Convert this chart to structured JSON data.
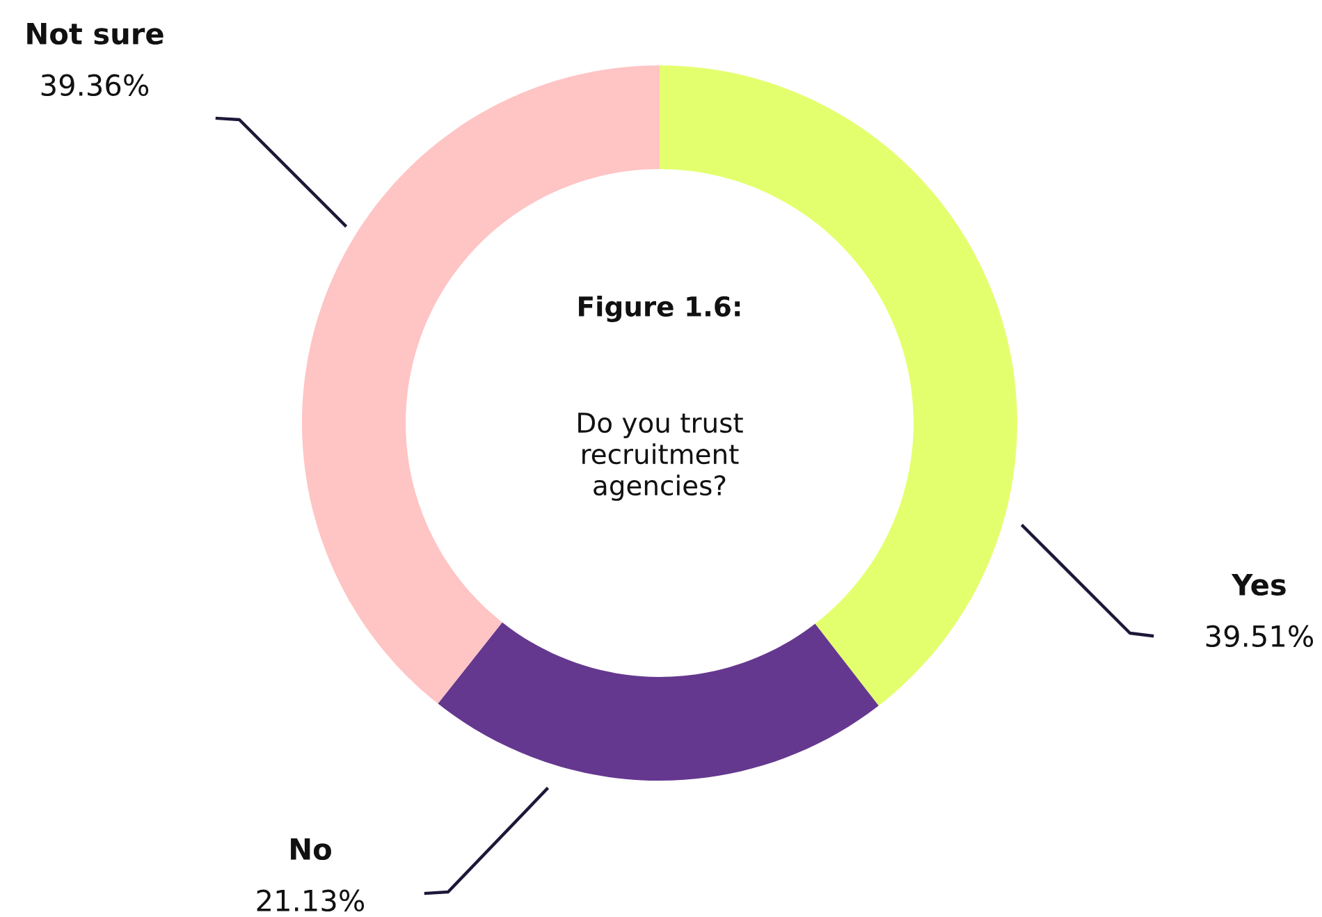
{
  "chart_data": {
    "type": "donut",
    "title": "Figure 1.6:",
    "subtitle": "Do you trust\nrecruitment\nagencies?",
    "categories": [
      "Yes",
      "No",
      "Not sure"
    ],
    "values": [
      39.51,
      21.13,
      39.36
    ],
    "value_labels": [
      "39.51%",
      "21.13%",
      "39.36%"
    ],
    "colors": [
      "#e4ff6e",
      "#65388f",
      "#ffc4c4"
    ],
    "legend": false
  }
}
